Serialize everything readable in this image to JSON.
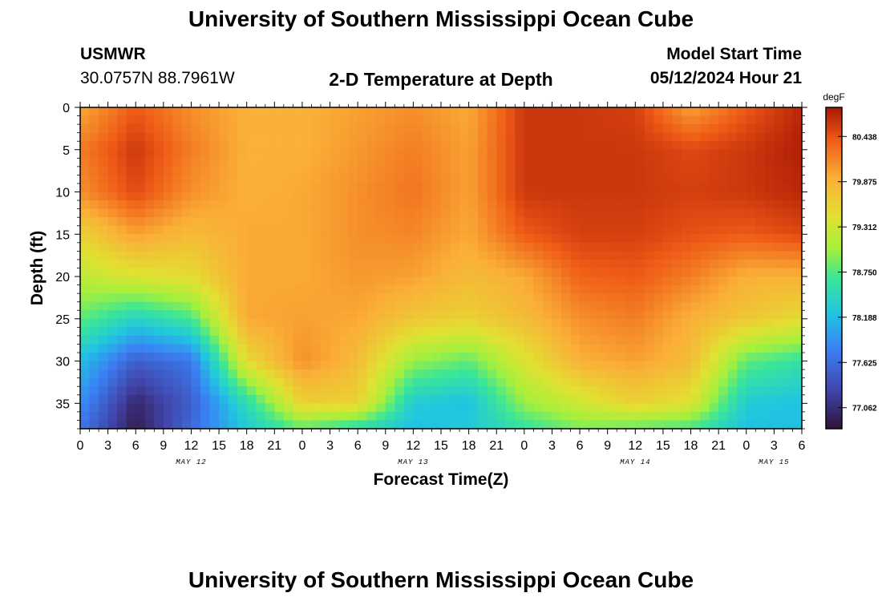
{
  "header": {
    "title": "University of Southern Mississippi Ocean Cube",
    "station_code": "USMWR",
    "coordinates": "30.0757N  88.7961W",
    "product": "2-D Temperature at Depth",
    "model_start_label": "Model Start Time",
    "model_start_value": "05/12/2024 Hour 21"
  },
  "footer": {
    "title": "University of Southern Mississippi Ocean Cube"
  },
  "chart_data": {
    "type": "heatmap",
    "title": "2-D Temperature at Depth",
    "xlabel": "Forecast Time(Z)",
    "ylabel": "Depth (ft)",
    "x_range_hours": [
      0,
      78
    ],
    "x_tick_labels": [
      "0",
      "3",
      "6",
      "9",
      "12",
      "15",
      "18",
      "21",
      "0",
      "3",
      "6",
      "9",
      "12",
      "15",
      "18",
      "21",
      "0",
      "3",
      "6",
      "9",
      "12",
      "15",
      "18",
      "21",
      "0",
      "3",
      "6"
    ],
    "day_labels": [
      {
        "label": "MAY 12",
        "hour": 12
      },
      {
        "label": "MAY 13",
        "hour": 36
      },
      {
        "label": "MAY 14",
        "hour": 60
      },
      {
        "label": "MAY 15",
        "hour": 75
      }
    ],
    "y_range_ft": [
      0,
      38
    ],
    "y_tick_labels": [
      "0",
      "5",
      "10",
      "15",
      "20",
      "25",
      "30",
      "35"
    ],
    "colorbar": {
      "unit": "degF",
      "min": 76.8,
      "max": 80.8,
      "tick_labels": [
        "80.438",
        "79.875",
        "79.312",
        "78.750",
        "78.188",
        "77.625",
        "77.062"
      ]
    },
    "grid_depths_ft": [
      0,
      5,
      10,
      15,
      20,
      25,
      30,
      35,
      38
    ],
    "grid_hours": [
      0,
      6,
      12,
      18,
      24,
      30,
      36,
      42,
      48,
      54,
      60,
      66,
      72,
      78
    ],
    "temperature_degF": [
      [
        79.95,
        80.4,
        80.1,
        79.9,
        79.9,
        80.0,
        80.1,
        79.95,
        80.6,
        80.6,
        80.55,
        80.0,
        80.4,
        80.7
      ],
      [
        80.2,
        80.6,
        80.2,
        79.9,
        79.9,
        80.05,
        80.2,
        80.0,
        80.6,
        80.6,
        80.6,
        80.5,
        80.6,
        80.75
      ],
      [
        80.1,
        80.5,
        80.1,
        79.9,
        79.95,
        80.1,
        80.25,
        80.0,
        80.6,
        80.6,
        80.6,
        80.55,
        80.6,
        80.7
      ],
      [
        79.6,
        80.0,
        79.8,
        79.95,
        79.95,
        80.1,
        80.15,
        79.95,
        80.4,
        80.55,
        80.55,
        80.45,
        80.4,
        80.5
      ],
      [
        79.2,
        79.4,
        79.5,
        79.95,
        79.95,
        80.05,
        80.0,
        79.8,
        79.95,
        80.35,
        80.4,
        80.2,
        79.9,
        79.9
      ],
      [
        78.8,
        78.4,
        78.7,
        79.95,
        80.0,
        79.95,
        79.7,
        79.6,
        79.8,
        80.1,
        80.2,
        79.9,
        79.7,
        79.5
      ],
      [
        78.2,
        77.5,
        77.7,
        79.5,
        80.1,
        79.8,
        79.0,
        78.8,
        79.4,
        79.9,
        80.0,
        79.8,
        78.8,
        78.6
      ],
      [
        77.9,
        77.0,
        77.5,
        78.5,
        79.6,
        79.6,
        78.3,
        78.2,
        79.0,
        79.3,
        79.6,
        79.4,
        78.3,
        78.2
      ],
      [
        77.7,
        76.9,
        77.6,
        78.3,
        78.8,
        78.5,
        78.2,
        78.3,
        78.6,
        78.9,
        78.8,
        78.7,
        78.2,
        78.2
      ]
    ]
  }
}
